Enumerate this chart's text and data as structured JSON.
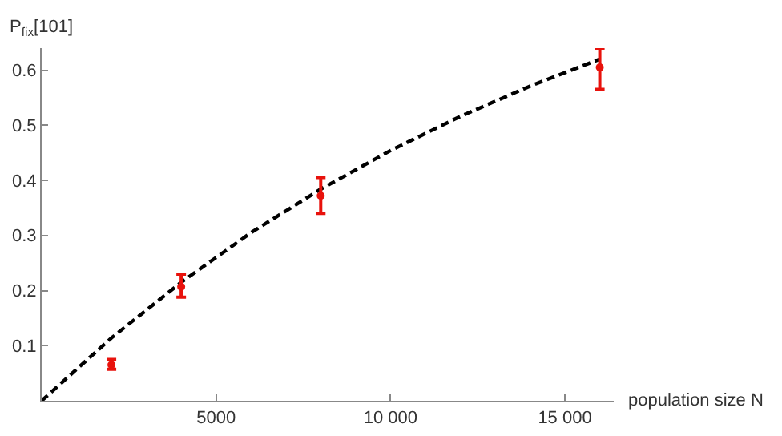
{
  "chart_data": {
    "type": "scatter",
    "xlabel": "population size N",
    "ylabel": "P$_{fix}$[101]",
    "xlim": [
      0,
      16400
    ],
    "ylim": [
      0,
      0.64
    ],
    "xticks": [
      {
        "value": 5000,
        "label": "5000"
      },
      {
        "value": 10000,
        "label": "10 000"
      },
      {
        "value": 15000,
        "label": "15 000"
      }
    ],
    "yticks": [
      0.1,
      0.2,
      0.3,
      0.4,
      0.5,
      0.6
    ],
    "grid": false,
    "series": [
      {
        "type": "line",
        "line_style": "dashed",
        "marker": "none",
        "color": "#000000",
        "x": [
          0,
          2000,
          4000,
          6000,
          8000,
          10000,
          12000,
          14000,
          16000
        ],
        "values": [
          0,
          0.114,
          0.215,
          0.305,
          0.384,
          0.454,
          0.516,
          0.571,
          0.62
        ]
      },
      {
        "marker": "circle",
        "color": "#e8120c",
        "x": [
          2000,
          4000,
          8000,
          16000
        ],
        "values": [
          0.065,
          0.207,
          0.372,
          0.605
        ],
        "errors": [
          [
            0.057,
            0.075
          ],
          [
            0.188,
            0.23
          ],
          [
            0.34,
            0.405
          ],
          [
            0.565,
            0.64
          ]
        ]
      }
    ]
  }
}
